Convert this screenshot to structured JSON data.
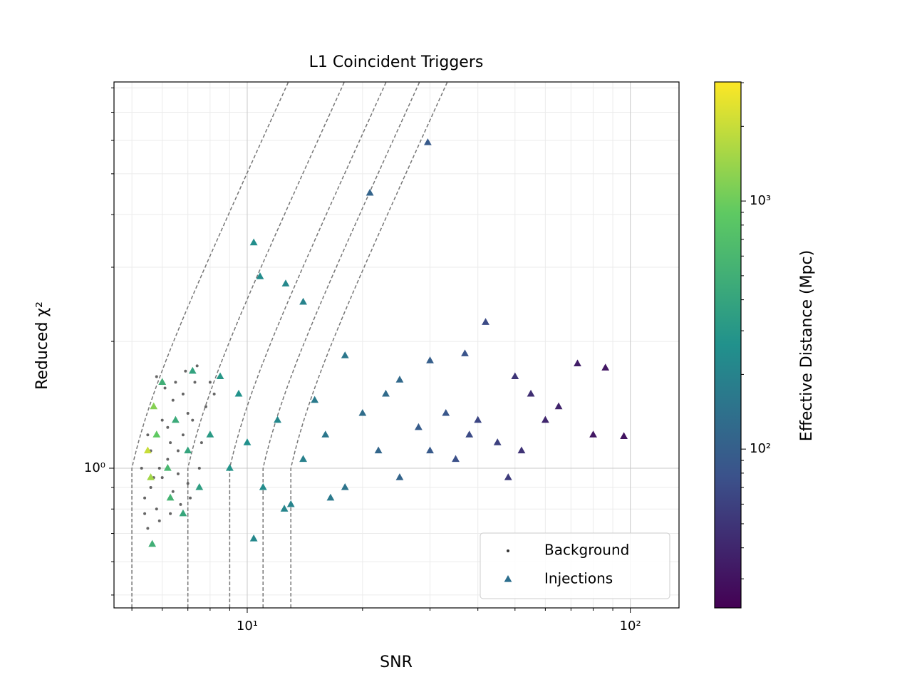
{
  "chart_data": {
    "type": "scatter",
    "title": "L1 Coincident Triggers",
    "xlabel": "SNR",
    "ylabel": "Reduced χ²",
    "colorbar_label": "Effective Distance (Mpc)",
    "xscale": "log",
    "yscale": "log",
    "cscale": "log",
    "grid": true,
    "legend": "lower right",
    "colormap": "viridis",
    "xlim": [
      4.49,
      134
    ],
    "ylim": [
      0.466,
      8.26
    ],
    "clim": [
      22.9,
      3020
    ],
    "xticks": [
      {
        "value": 10,
        "label": "10¹"
      },
      {
        "value": 100,
        "label": "10²"
      }
    ],
    "xminorticks": [
      5,
      6,
      7,
      8,
      9,
      20,
      30,
      40,
      50,
      60,
      70,
      80,
      90
    ],
    "yticks": [
      {
        "value": 1,
        "label": "10⁰"
      }
    ],
    "yminorticks": [
      0.5,
      0.6,
      0.7,
      0.8,
      0.9,
      2,
      3,
      4,
      5,
      6,
      7,
      8
    ],
    "cticks": [
      {
        "value": 100,
        "label": "10²"
      },
      {
        "value": 1000,
        "label": "10³"
      }
    ],
    "cminorticks": [
      30,
      40,
      50,
      60,
      70,
      80,
      90,
      200,
      300,
      400,
      500,
      600,
      700,
      800,
      900,
      2000,
      3000
    ],
    "contours": [
      5,
      7,
      9,
      11,
      13
    ],
    "series": [
      {
        "name": "Background",
        "color": "#333333",
        "marker": "dot",
        "x": [
          5.4,
          5.6,
          5.8,
          6.0,
          6.2,
          6.4,
          6.6,
          6.8,
          7.0,
          7.2,
          7.5,
          7.8,
          8.0,
          5.5,
          5.7,
          6.1,
          6.5,
          6.9,
          7.4,
          5.9,
          6.3,
          5.5,
          6.7,
          7.1,
          5.3,
          5.6,
          6.0,
          6.4,
          7.6,
          8.2,
          5.8,
          6.2,
          6.6,
          5.4,
          6.8,
          7.3,
          5.9,
          6.3,
          7.0,
          5.7
        ],
        "values": [
          0.85,
          0.9,
          0.8,
          0.95,
          1.05,
          0.88,
          1.1,
          1.2,
          0.92,
          1.3,
          1.0,
          1.4,
          1.6,
          1.2,
          1.4,
          1.55,
          1.6,
          1.7,
          1.75,
          0.75,
          0.78,
          0.72,
          0.82,
          0.85,
          1.0,
          1.1,
          1.3,
          1.45,
          1.15,
          1.5,
          1.65,
          1.25,
          0.97,
          0.78,
          1.5,
          1.6,
          1.0,
          1.15,
          1.35,
          0.95
        ]
      },
      {
        "name": "Injections",
        "color": "#2c6e8e",
        "marker": "triangle",
        "x": [
          29.6,
          20.9,
          10.4,
          10.8,
          12.6,
          14.0,
          41.9,
          37.0,
          96.2,
          72.8,
          86.1,
          10.4,
          5.65,
          18.0,
          25.0,
          30.0,
          50.0,
          55.0,
          60.0,
          65.0,
          80.0,
          45.0,
          40.0,
          35.0,
          28.0,
          22.0,
          20.0,
          16.0,
          14.0,
          12.0,
          11.0,
          9.0,
          8.0,
          7.5,
          7.0,
          6.5,
          6.2,
          6.0,
          5.8,
          5.6,
          5.5,
          5.7,
          6.3,
          13.0,
          18.0,
          25.0,
          48.0,
          30.0,
          9.5,
          8.5,
          7.2,
          10.0,
          15.0,
          23.0,
          33.0,
          52.0,
          38.0,
          12.5,
          16.5,
          6.8
        ],
        "values": [
          5.93,
          4.5,
          3.43,
          2.85,
          2.74,
          2.48,
          2.22,
          1.87,
          1.19,
          1.77,
          1.73,
          0.68,
          0.66,
          1.85,
          1.62,
          1.8,
          1.65,
          1.5,
          1.3,
          1.4,
          1.2,
          1.15,
          1.3,
          1.05,
          1.25,
          1.1,
          1.35,
          1.2,
          1.05,
          1.3,
          0.9,
          1.0,
          1.2,
          0.9,
          1.1,
          1.3,
          1.0,
          1.6,
          1.2,
          0.95,
          1.1,
          1.4,
          0.85,
          0.82,
          0.9,
          0.95,
          0.95,
          1.1,
          1.5,
          1.65,
          1.7,
          1.15,
          1.45,
          1.5,
          1.35,
          1.1,
          1.2,
          0.8,
          0.85,
          0.78
        ],
        "c": [
          90,
          110,
          250,
          240,
          220,
          200,
          70,
          80,
          30,
          35,
          32,
          220,
          500,
          160,
          120,
          100,
          50,
          45,
          40,
          38,
          32,
          60,
          65,
          75,
          95,
          115,
          130,
          160,
          190,
          220,
          240,
          280,
          320,
          350,
          400,
          450,
          600,
          500,
          900,
          1500,
          2000,
          1200,
          550,
          200,
          150,
          110,
          55,
          90,
          270,
          300,
          380,
          260,
          170,
          125,
          85,
          48,
          70,
          210,
          165,
          420
        ]
      }
    ]
  }
}
